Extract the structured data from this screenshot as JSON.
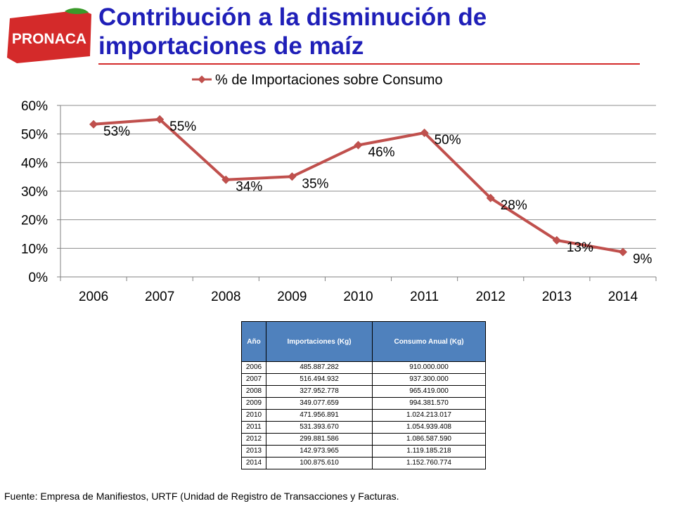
{
  "header": {
    "logo_text": "PRONACA",
    "title_line1": "Contribución a la disminución de",
    "title_line2": "importaciones de maíz"
  },
  "colors": {
    "title": "#1f1fb8",
    "series_line": "#c0504d",
    "logo_red": "#d42a2a",
    "logo_green": "#3a9a2a",
    "table_header": "#4f81bd"
  },
  "chart_data": {
    "type": "line",
    "categories": [
      "2006",
      "2007",
      "2008",
      "2009",
      "2010",
      "2011",
      "2012",
      "2013",
      "2014"
    ],
    "series": [
      {
        "name": "% de Importaciones sobre Consumo",
        "values": [
          53.4,
          55.1,
          34.0,
          35.1,
          46.1,
          50.4,
          27.6,
          12.8,
          8.7
        ],
        "labels": [
          "53%",
          "55%",
          "34%",
          "35%",
          "46%",
          "50%",
          "28%",
          "13%",
          "9%"
        ]
      }
    ],
    "ylim": [
      0,
      60
    ],
    "yticks": [
      "0%",
      "10%",
      "20%",
      "30%",
      "40%",
      "50%",
      "60%"
    ],
    "grid": true,
    "legend": "top"
  },
  "table": {
    "headers": [
      "Año",
      "Importaciones (Kg)",
      "Consumo Anual (Kg)"
    ],
    "rows": [
      [
        "2006",
        "485.887.282",
        "910.000.000"
      ],
      [
        "2007",
        "516.494.932",
        "937.300.000"
      ],
      [
        "2008",
        "327.952.778",
        "965.419.000"
      ],
      [
        "2009",
        "349.077.659",
        "994.381.570"
      ],
      [
        "2010",
        "471.956.891",
        "1.024.213.017"
      ],
      [
        "2011",
        "531.393.670",
        "1.054.939.408"
      ],
      [
        "2012",
        "299.881.586",
        "1.086.587.590"
      ],
      [
        "2013",
        "142.973.965",
        "1.119.185.218"
      ],
      [
        "2014",
        "100.875.610",
        "1.152.760.774"
      ]
    ]
  },
  "footer": {
    "source": "Fuente:  Empresa de Manifiestos, URTF (Unidad de Registro de Transacciones y Facturas."
  }
}
